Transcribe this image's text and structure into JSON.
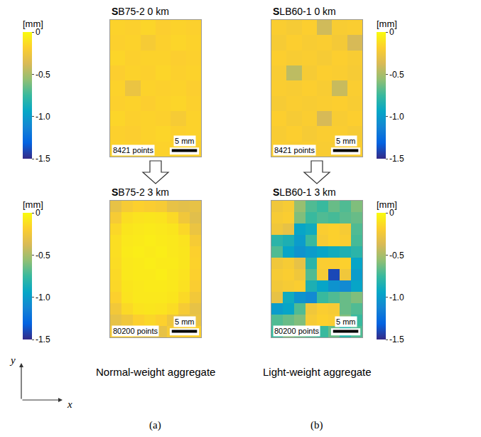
{
  "chart_data": [
    {
      "type": "heatmap",
      "title": "SB75-2 0 km",
      "xlim": [
        0,
        18
      ],
      "ylim": [
        0,
        27
      ],
      "tick_labels": false,
      "annotations": [
        "8421 points"
      ],
      "scale_bar": {
        "length": 5,
        "label": "5 mm"
      },
      "colorbar": {
        "title": "[mm]",
        "range": [
          -1.5,
          0
        ],
        "ticks": [
          0,
          -0.5,
          {
            "value": -1,
            "label": "-1.0"
          },
          -1.5
        ]
      },
      "z": [
        [
          -0.17,
          -0.18,
          -0.16,
          -0.19,
          -0.17,
          -0.18
        ],
        [
          -0.18,
          -0.17,
          -0.22,
          -0.18,
          -0.16,
          -0.17
        ],
        [
          -0.16,
          -0.18,
          -0.17,
          -0.17,
          -0.19,
          -0.18
        ],
        [
          -0.19,
          -0.17,
          -0.18,
          -0.16,
          -0.18,
          -0.17
        ],
        [
          -0.17,
          -0.28,
          -0.17,
          -0.18,
          -0.17,
          -0.19
        ],
        [
          -0.18,
          -0.17,
          -0.19,
          -0.17,
          -0.16,
          -0.18
        ],
        [
          -0.16,
          -0.18,
          -0.17,
          -0.18,
          -0.22,
          -0.17
        ],
        [
          -0.18,
          -0.19,
          -0.17,
          -0.16,
          -0.18,
          -0.17
        ],
        [
          -0.17,
          -0.18,
          -0.18,
          -0.17,
          -0.17,
          -0.18
        ]
      ]
    },
    {
      "type": "heatmap",
      "title": "SLB60-1 0 km",
      "xlim": [
        0,
        18
      ],
      "ylim": [
        0,
        27
      ],
      "tick_labels": false,
      "annotations": [
        "8421 points"
      ],
      "scale_bar": {
        "length": 5,
        "label": "5 mm"
      },
      "colorbar": {
        "title": "[mm]",
        "range": [
          -1.5,
          0
        ],
        "ticks": [
          0,
          -0.5,
          {
            "value": -1,
            "label": "-1.0"
          },
          -1.5
        ]
      },
      "z": [
        [
          -0.2,
          -0.22,
          -0.19,
          -0.4,
          -0.21,
          -0.2
        ],
        [
          -0.22,
          -0.19,
          -0.21,
          -0.2,
          -0.23,
          -0.38
        ],
        [
          -0.19,
          -0.21,
          -0.2,
          -0.22,
          -0.19,
          -0.21
        ],
        [
          -0.21,
          -0.45,
          -0.22,
          -0.19,
          -0.2,
          -0.22
        ],
        [
          -0.2,
          -0.21,
          -0.19,
          -0.21,
          -0.42,
          -0.2
        ],
        [
          -0.22,
          -0.2,
          -0.21,
          -0.2,
          -0.19,
          -0.21
        ],
        [
          -0.19,
          -0.22,
          -0.2,
          -0.38,
          -0.21,
          -0.19
        ],
        [
          -0.21,
          -0.19,
          -0.22,
          -0.2,
          -0.2,
          -0.22
        ],
        [
          -0.2,
          -0.21,
          -0.2,
          -0.21,
          -0.22,
          -0.2
        ]
      ]
    },
    {
      "type": "heatmap",
      "title": "SB75-2 3 km",
      "xlim": [
        0,
        18
      ],
      "ylim": [
        0,
        27
      ],
      "tick_labels": false,
      "annotations": [
        "80200 points"
      ],
      "scale_bar": {
        "length": 5,
        "label": "5 mm"
      },
      "colorbar": {
        "title": "[mm]",
        "range": [
          -1.5,
          0
        ],
        "ticks": [
          0,
          -0.5,
          {
            "value": -1,
            "label": "-1.0"
          },
          -1.5
        ]
      },
      "z": [
        [
          -0.3,
          -0.22,
          -0.18,
          -0.2,
          -0.22,
          -0.3,
          -0.32,
          -0.3
        ],
        [
          -0.22,
          -0.12,
          -0.1,
          -0.09,
          -0.1,
          -0.14,
          -0.25,
          -0.33
        ],
        [
          -0.15,
          -0.09,
          -0.08,
          -0.07,
          -0.08,
          -0.09,
          -0.15,
          -0.28
        ],
        [
          -0.12,
          -0.08,
          -0.07,
          -0.06,
          -0.07,
          -0.08,
          -0.1,
          -0.22
        ],
        [
          -0.12,
          -0.07,
          -0.06,
          -0.07,
          -0.06,
          -0.08,
          -0.09,
          -0.18
        ],
        [
          -0.13,
          -0.08,
          -0.07,
          -0.06,
          -0.07,
          -0.07,
          -0.09,
          -0.17
        ],
        [
          -0.14,
          -0.08,
          -0.07,
          -0.07,
          -0.06,
          -0.08,
          -0.1,
          -0.18
        ],
        [
          -0.15,
          -0.09,
          -0.08,
          -0.07,
          -0.07,
          -0.08,
          -0.11,
          -0.2
        ],
        [
          -0.18,
          -0.1,
          -0.08,
          -0.08,
          -0.08,
          -0.09,
          -0.14,
          -0.24
        ],
        [
          -0.24,
          -0.14,
          -0.1,
          -0.09,
          -0.1,
          -0.13,
          -0.22,
          -0.3
        ],
        [
          -0.3,
          -0.25,
          -0.18,
          -0.15,
          -0.18,
          -0.26,
          -0.32,
          -0.28
        ],
        [
          -0.22,
          -0.2,
          -0.28,
          -0.3,
          -0.3,
          -0.22,
          -0.2,
          -0.18
        ]
      ]
    },
    {
      "type": "heatmap",
      "title": "SLB60-1 3 km",
      "xlim": [
        0,
        18
      ],
      "ylim": [
        0,
        27
      ],
      "tick_labels": false,
      "annotations": [
        "80200 points"
      ],
      "scale_bar": {
        "length": 5,
        "label": "5 mm"
      },
      "colorbar": {
        "title": "[mm]",
        "range": [
          -1.5,
          0
        ],
        "ticks": [
          0,
          -0.5,
          {
            "value": -1,
            "label": "-1.0"
          },
          -1.5
        ]
      },
      "z": [
        [
          -0.25,
          -0.22,
          -0.55,
          -0.7,
          -0.75,
          -0.65,
          -0.7,
          -0.6
        ],
        [
          -0.22,
          -0.2,
          -0.6,
          -0.75,
          -0.7,
          -0.72,
          -0.68,
          -0.65
        ],
        [
          -0.25,
          -0.3,
          -0.95,
          -0.9,
          -0.2,
          -0.18,
          -0.22,
          -0.7
        ],
        [
          -0.8,
          -0.85,
          -1.0,
          -0.75,
          -0.22,
          -0.18,
          -0.2,
          -0.72
        ],
        [
          -0.7,
          -0.95,
          -1.05,
          -1.0,
          -0.95,
          -0.9,
          -0.85,
          -0.8
        ],
        [
          -0.25,
          -0.22,
          -0.3,
          -0.8,
          -0.2,
          -0.2,
          -0.18,
          -0.95
        ],
        [
          -0.22,
          -0.2,
          -0.25,
          -0.7,
          -0.22,
          -1.4,
          -0.25,
          -1.0
        ],
        [
          -0.24,
          -0.22,
          -0.2,
          -0.85,
          -0.95,
          -1.05,
          -1.1,
          -0.95
        ],
        [
          -0.3,
          -0.9,
          -1.05,
          -1.1,
          -0.75,
          -0.7,
          -0.65,
          -0.6
        ],
        [
          -1.0,
          -0.95,
          -0.7,
          -0.25,
          -0.2,
          -0.22,
          -0.65,
          -0.7
        ],
        [
          -0.7,
          -0.65,
          -0.6,
          -0.22,
          -0.18,
          -0.2,
          -0.6,
          -0.75
        ],
        [
          -0.75,
          -0.6,
          -0.65,
          -0.7,
          -0.75,
          -0.65,
          -0.8,
          -0.7
        ]
      ]
    }
  ],
  "panels": [
    {
      "label": "(a)",
      "caption": "Normal-weight aggregate"
    },
    {
      "label": "(b)",
      "caption": "Light-weight aggregate"
    }
  ],
  "axis_arrows": {
    "x": "x",
    "y": "y"
  }
}
